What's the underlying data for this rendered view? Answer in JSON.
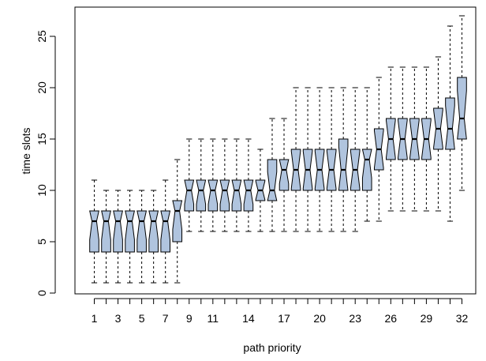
{
  "chart_data": {
    "type": "box",
    "notched": true,
    "xlabel": "path priority",
    "ylabel": "time slots",
    "ylim": [
      0,
      27
    ],
    "y_ticks": [
      0,
      5,
      10,
      15,
      20,
      25
    ],
    "x_tick_labels": [
      "1",
      "3",
      "5",
      "7",
      "9",
      "11",
      "14",
      "17",
      "20",
      "23",
      "26",
      "29",
      "32"
    ],
    "x_tick_positions": [
      1,
      3,
      5,
      7,
      9,
      11,
      14,
      17,
      20,
      23,
      26,
      29,
      32
    ],
    "box_color": "#b0c4de",
    "boxes": [
      {
        "x": 1,
        "whisker_low": 1,
        "q1": 4,
        "median": 7,
        "q3": 8,
        "whisker_high": 11
      },
      {
        "x": 2,
        "whisker_low": 1,
        "q1": 4,
        "median": 7,
        "q3": 8,
        "whisker_high": 10
      },
      {
        "x": 3,
        "whisker_low": 1,
        "q1": 4,
        "median": 7,
        "q3": 8,
        "whisker_high": 10
      },
      {
        "x": 4,
        "whisker_low": 1,
        "q1": 4,
        "median": 7,
        "q3": 8,
        "whisker_high": 10
      },
      {
        "x": 5,
        "whisker_low": 1,
        "q1": 4,
        "median": 7,
        "q3": 8,
        "whisker_high": 10
      },
      {
        "x": 6,
        "whisker_low": 1,
        "q1": 4,
        "median": 7,
        "q3": 8,
        "whisker_high": 10
      },
      {
        "x": 7,
        "whisker_low": 1,
        "q1": 4,
        "median": 7,
        "q3": 8,
        "whisker_high": 11
      },
      {
        "x": 8,
        "whisker_low": 1,
        "q1": 5,
        "median": 8,
        "q3": 9,
        "whisker_high": 13
      },
      {
        "x": 9,
        "whisker_low": 6,
        "q1": 8,
        "median": 10,
        "q3": 11,
        "whisker_high": 15
      },
      {
        "x": 10,
        "whisker_low": 6,
        "q1": 8,
        "median": 10,
        "q3": 11,
        "whisker_high": 15
      },
      {
        "x": 11,
        "whisker_low": 6,
        "q1": 8,
        "median": 10,
        "q3": 11,
        "whisker_high": 15
      },
      {
        "x": 12,
        "whisker_low": 6,
        "q1": 8,
        "median": 10,
        "q3": 11,
        "whisker_high": 15
      },
      {
        "x": 13,
        "whisker_low": 6,
        "q1": 8,
        "median": 10,
        "q3": 11,
        "whisker_high": 15
      },
      {
        "x": 14,
        "whisker_low": 6,
        "q1": 8,
        "median": 10,
        "q3": 11,
        "whisker_high": 15
      },
      {
        "x": 15,
        "whisker_low": 6,
        "q1": 9,
        "median": 10,
        "q3": 11,
        "whisker_high": 14
      },
      {
        "x": 16,
        "whisker_low": 6,
        "q1": 9,
        "median": 10,
        "q3": 13,
        "whisker_high": 17
      },
      {
        "x": 17,
        "whisker_low": 6,
        "q1": 10,
        "median": 12,
        "q3": 13,
        "whisker_high": 17
      },
      {
        "x": 18,
        "whisker_low": 6,
        "q1": 10,
        "median": 12,
        "q3": 14,
        "whisker_high": 20
      },
      {
        "x": 19,
        "whisker_low": 6,
        "q1": 10,
        "median": 12,
        "q3": 14,
        "whisker_high": 20
      },
      {
        "x": 20,
        "whisker_low": 6,
        "q1": 10,
        "median": 12,
        "q3": 14,
        "whisker_high": 20
      },
      {
        "x": 21,
        "whisker_low": 6,
        "q1": 10,
        "median": 12,
        "q3": 14,
        "whisker_high": 20
      },
      {
        "x": 22,
        "whisker_low": 6,
        "q1": 10,
        "median": 12,
        "q3": 15,
        "whisker_high": 20
      },
      {
        "x": 23,
        "whisker_low": 6,
        "q1": 10,
        "median": 12,
        "q3": 14,
        "whisker_high": 20
      },
      {
        "x": 24,
        "whisker_low": 7,
        "q1": 10,
        "median": 13,
        "q3": 14,
        "whisker_high": 20
      },
      {
        "x": 25,
        "whisker_low": 7,
        "q1": 12,
        "median": 14,
        "q3": 16,
        "whisker_high": 21
      },
      {
        "x": 26,
        "whisker_low": 8,
        "q1": 13,
        "median": 15,
        "q3": 17,
        "whisker_high": 22
      },
      {
        "x": 27,
        "whisker_low": 8,
        "q1": 13,
        "median": 15,
        "q3": 17,
        "whisker_high": 22
      },
      {
        "x": 28,
        "whisker_low": 8,
        "q1": 13,
        "median": 15,
        "q3": 17,
        "whisker_high": 22
      },
      {
        "x": 29,
        "whisker_low": 8,
        "q1": 13,
        "median": 15,
        "q3": 17,
        "whisker_high": 22
      },
      {
        "x": 30,
        "whisker_low": 8,
        "q1": 14,
        "median": 16,
        "q3": 18,
        "whisker_high": 23
      },
      {
        "x": 31,
        "whisker_low": 7,
        "q1": 14,
        "median": 16,
        "q3": 19,
        "whisker_high": 26
      },
      {
        "x": 32,
        "whisker_low": 10,
        "q1": 15,
        "median": 17,
        "q3": 21,
        "whisker_high": 27
      }
    ]
  }
}
